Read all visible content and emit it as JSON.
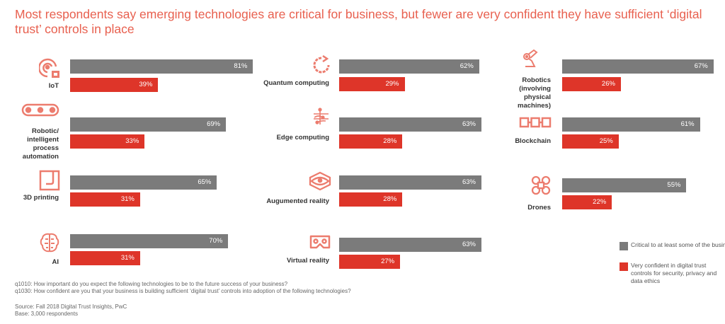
{
  "title": "Most respondents say emerging technologies are critical for business, but fewer are very confident they have sufficient ‘digital trust’ controls in place",
  "colors": {
    "critical": "#7b7b7b",
    "confident": "#de3529",
    "icon": "#ec7c6e",
    "title": "#e8604f"
  },
  "chart_data": {
    "type": "bar",
    "orientation": "horizontal",
    "title": "Most respondents say emerging technologies are critical for business, but fewer are very confident they have sufficient ‘digital trust’ controls in place",
    "legend_position": "bottom-right",
    "grid": false,
    "xlim": [
      0,
      100
    ],
    "categories": [
      "IoT",
      "Robotic/ intelligent process automation",
      "3D printing",
      "AI",
      "Quantum computing",
      "Edge computing",
      "Augumented reality",
      "Virtual reality",
      "Robotics (involving physical machines)",
      "Blockchain",
      "Drones"
    ],
    "icons": [
      "iot-icon",
      "conveyor-icon",
      "3d-printer-icon",
      "brain-icon",
      "quantum-icon",
      "circuit-icon",
      "ar-headset-icon",
      "vr-headset-icon",
      "robot-arm-icon",
      "blockchain-icon",
      "drone-icon"
    ],
    "series": [
      {
        "name": "Critical to at least some of the business",
        "values": [
          81,
          69,
          65,
          70,
          62,
          63,
          63,
          63,
          67,
          61,
          55
        ]
      },
      {
        "name": "Very confident in digital trust controls for security, privacy and data ethics",
        "values": [
          39,
          33,
          31,
          31,
          29,
          28,
          28,
          27,
          26,
          25,
          22
        ]
      }
    ],
    "value_labels": [
      [
        "81%",
        "69%",
        "65%",
        "70%",
        "62%",
        "63%",
        "63%",
        "63%",
        "67%",
        "61%",
        "55%"
      ],
      [
        "39%",
        "33%",
        "31%",
        "31%",
        "29%",
        "28%",
        "28%",
        "27%",
        "26%",
        "25%",
        "22%"
      ]
    ]
  },
  "notes": {
    "q1010": "q1010: How important do you expect the following technologies to be to the future success of your business?",
    "q1030": "q1030: How confident are you that your business is building sufficient ‘digital trust’ controls into adoption of the following technologies?",
    "source": "Source: Fall 2018 Digital Trust Insights, PwC",
    "base": "Base: 3,000 respondents"
  }
}
